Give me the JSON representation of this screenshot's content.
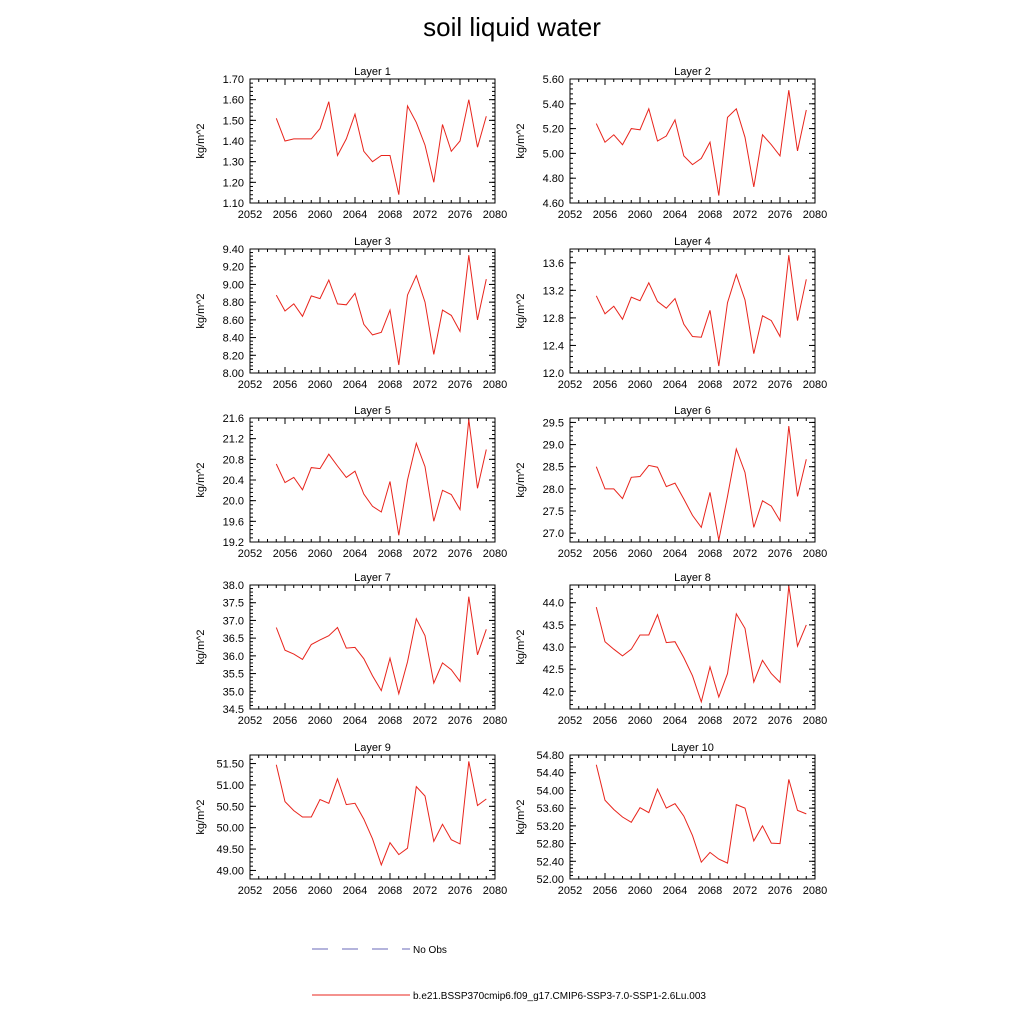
{
  "title": "soil liquid water",
  "colors": {
    "model_line": "#e8241c",
    "obs_line": "#6a6ab8",
    "axis": "#000000"
  },
  "legend": {
    "obs_label": "No Obs",
    "model_label": "b.e21.BSSP370cmip6.f09_g17.CMIP6-SSP3-7.0-SSP1-2.6Lu.003"
  },
  "chart_data": [
    {
      "type": "line",
      "title": "Layer 1",
      "ylabel": "kg/m^2",
      "xlim": [
        2052,
        2080
      ],
      "ylim": [
        1.1,
        1.7
      ],
      "xticks": [
        2052,
        2056,
        2060,
        2064,
        2068,
        2072,
        2076,
        2080
      ],
      "yticks": [
        1.1,
        1.2,
        1.3,
        1.4,
        1.5,
        1.6,
        1.7
      ],
      "ydecimals": 2,
      "x": [
        2055,
        2056,
        2057,
        2058,
        2059,
        2060,
        2061,
        2062,
        2063,
        2064,
        2065,
        2066,
        2067,
        2068,
        2069,
        2070,
        2071,
        2072,
        2073,
        2074,
        2075,
        2076,
        2077,
        2078,
        2079
      ],
      "values": [
        1.51,
        1.4,
        1.41,
        1.41,
        1.41,
        1.46,
        1.59,
        1.33,
        1.41,
        1.53,
        1.35,
        1.3,
        1.33,
        1.33,
        1.14,
        1.57,
        1.49,
        1.38,
        1.2,
        1.48,
        1.35,
        1.4,
        1.6,
        1.37,
        1.52
      ]
    },
    {
      "type": "line",
      "title": "Layer 2",
      "ylabel": "kg/m^2",
      "xlim": [
        2052,
        2080
      ],
      "ylim": [
        4.6,
        5.6
      ],
      "xticks": [
        2052,
        2056,
        2060,
        2064,
        2068,
        2072,
        2076,
        2080
      ],
      "yticks": [
        4.6,
        4.8,
        5.0,
        5.2,
        5.4,
        5.6
      ],
      "ydecimals": 2,
      "x": [
        2055,
        2056,
        2057,
        2058,
        2059,
        2060,
        2061,
        2062,
        2063,
        2064,
        2065,
        2066,
        2067,
        2068,
        2069,
        2070,
        2071,
        2072,
        2073,
        2074,
        2075,
        2076,
        2077,
        2078,
        2079
      ],
      "values": [
        5.24,
        5.09,
        5.15,
        5.07,
        5.2,
        5.19,
        5.36,
        5.1,
        5.14,
        5.27,
        4.98,
        4.91,
        4.96,
        5.09,
        4.66,
        5.29,
        5.36,
        5.13,
        4.73,
        5.15,
        5.07,
        4.98,
        5.51,
        5.02,
        5.35
      ]
    },
    {
      "type": "line",
      "title": "Layer 3",
      "ylabel": "kg/m^2",
      "xlim": [
        2052,
        2080
      ],
      "ylim": [
        8.0,
        9.4
      ],
      "xticks": [
        2052,
        2056,
        2060,
        2064,
        2068,
        2072,
        2076,
        2080
      ],
      "yticks": [
        8.0,
        8.2,
        8.4,
        8.6,
        8.8,
        9.0,
        9.2,
        9.4
      ],
      "ydecimals": 2,
      "x": [
        2055,
        2056,
        2057,
        2058,
        2059,
        2060,
        2061,
        2062,
        2063,
        2064,
        2065,
        2066,
        2067,
        2068,
        2069,
        2070,
        2071,
        2072,
        2073,
        2074,
        2075,
        2076,
        2077,
        2078,
        2079
      ],
      "values": [
        8.88,
        8.7,
        8.78,
        8.64,
        8.87,
        8.84,
        9.05,
        8.78,
        8.77,
        8.9,
        8.55,
        8.43,
        8.46,
        8.71,
        8.09,
        8.88,
        9.1,
        8.8,
        8.21,
        8.71,
        8.65,
        8.47,
        9.33,
        8.6,
        9.06
      ]
    },
    {
      "type": "line",
      "title": "Layer 4",
      "ylabel": "kg/m^2",
      "xlim": [
        2052,
        2080
      ],
      "ylim": [
        12.0,
        13.8
      ],
      "xticks": [
        2052,
        2056,
        2060,
        2064,
        2068,
        2072,
        2076,
        2080
      ],
      "yticks": [
        12.0,
        12.4,
        12.8,
        13.2,
        13.6
      ],
      "ydecimals": 1,
      "x": [
        2055,
        2056,
        2057,
        2058,
        2059,
        2060,
        2061,
        2062,
        2063,
        2064,
        2065,
        2066,
        2067,
        2068,
        2069,
        2070,
        2071,
        2072,
        2073,
        2074,
        2075,
        2076,
        2077,
        2078,
        2079
      ],
      "values": [
        13.12,
        12.86,
        12.97,
        12.78,
        13.1,
        13.05,
        13.31,
        13.04,
        12.94,
        13.08,
        12.71,
        12.53,
        12.52,
        12.91,
        12.1,
        13.02,
        13.43,
        13.06,
        12.28,
        12.83,
        12.76,
        12.53,
        13.71,
        12.76,
        13.36
      ]
    },
    {
      "type": "line",
      "title": "Layer 5",
      "ylabel": "kg/m^2",
      "xlim": [
        2052,
        2080
      ],
      "ylim": [
        19.2,
        21.6
      ],
      "xticks": [
        2052,
        2056,
        2060,
        2064,
        2068,
        2072,
        2076,
        2080
      ],
      "yticks": [
        19.2,
        19.6,
        20.0,
        20.4,
        20.8,
        21.2,
        21.6
      ],
      "ydecimals": 1,
      "x": [
        2055,
        2056,
        2057,
        2058,
        2059,
        2060,
        2061,
        2062,
        2063,
        2064,
        2065,
        2066,
        2067,
        2068,
        2069,
        2070,
        2071,
        2072,
        2073,
        2074,
        2075,
        2076,
        2077,
        2078,
        2079
      ],
      "values": [
        20.71,
        20.35,
        20.45,
        20.21,
        20.64,
        20.62,
        20.9,
        20.67,
        20.45,
        20.57,
        20.13,
        19.89,
        19.78,
        20.37,
        19.33,
        20.4,
        21.11,
        20.66,
        19.6,
        20.2,
        20.12,
        19.83,
        21.57,
        20.24,
        20.99
      ]
    },
    {
      "type": "line",
      "title": "Layer 6",
      "ylabel": "kg/m^2",
      "xlim": [
        2052,
        2080
      ],
      "ylim": [
        26.8,
        29.6
      ],
      "xticks": [
        2052,
        2056,
        2060,
        2064,
        2068,
        2072,
        2076,
        2080
      ],
      "yticks": [
        27.0,
        27.5,
        28.0,
        28.5,
        29.0,
        29.5
      ],
      "ydecimals": 1,
      "x": [
        2055,
        2056,
        2057,
        2058,
        2059,
        2060,
        2061,
        2062,
        2063,
        2064,
        2065,
        2066,
        2067,
        2068,
        2069,
        2070,
        2071,
        2072,
        2073,
        2074,
        2075,
        2076,
        2077,
        2078,
        2079
      ],
      "values": [
        28.5,
        28.0,
        28.0,
        27.78,
        28.26,
        28.28,
        28.53,
        28.49,
        28.05,
        28.13,
        27.77,
        27.4,
        27.13,
        27.92,
        26.84,
        27.83,
        28.9,
        28.37,
        27.13,
        27.73,
        27.61,
        27.28,
        29.42,
        27.83,
        28.67
      ]
    },
    {
      "type": "line",
      "title": "Layer 7",
      "ylabel": "kg/m^2",
      "xlim": [
        2052,
        2080
      ],
      "ylim": [
        34.5,
        38.0
      ],
      "xticks": [
        2052,
        2056,
        2060,
        2064,
        2068,
        2072,
        2076,
        2080
      ],
      "yticks": [
        34.5,
        35.0,
        35.5,
        36.0,
        36.5,
        37.0,
        37.5,
        38.0
      ],
      "ydecimals": 1,
      "x": [
        2055,
        2056,
        2057,
        2058,
        2059,
        2060,
        2061,
        2062,
        2063,
        2064,
        2065,
        2066,
        2067,
        2068,
        2069,
        2070,
        2071,
        2072,
        2073,
        2074,
        2075,
        2076,
        2077,
        2078,
        2079
      ],
      "values": [
        36.8,
        36.16,
        36.05,
        35.9,
        36.32,
        36.45,
        36.57,
        36.8,
        36.22,
        36.24,
        35.92,
        35.44,
        35.02,
        35.93,
        34.93,
        35.83,
        37.05,
        36.57,
        35.23,
        35.8,
        35.61,
        35.28,
        37.67,
        36.03,
        36.75
      ]
    },
    {
      "type": "line",
      "title": "Layer 8",
      "ylabel": "kg/m^2",
      "xlim": [
        2052,
        2080
      ],
      "ylim": [
        41.6,
        44.4
      ],
      "xticks": [
        2052,
        2056,
        2060,
        2064,
        2068,
        2072,
        2076,
        2080
      ],
      "yticks": [
        42.0,
        42.5,
        43.0,
        43.5,
        44.0
      ],
      "ydecimals": 1,
      "x": [
        2055,
        2056,
        2057,
        2058,
        2059,
        2060,
        2061,
        2062,
        2063,
        2064,
        2065,
        2066,
        2067,
        2068,
        2069,
        2070,
        2071,
        2072,
        2073,
        2074,
        2075,
        2076,
        2077,
        2078,
        2079
      ],
      "values": [
        43.9,
        43.12,
        42.95,
        42.8,
        42.95,
        43.27,
        43.27,
        43.73,
        43.1,
        43.12,
        42.76,
        42.35,
        41.76,
        42.55,
        41.87,
        42.4,
        43.75,
        43.42,
        42.21,
        42.7,
        42.4,
        42.2,
        44.38,
        43.02,
        43.5
      ]
    },
    {
      "type": "line",
      "title": "Layer 9",
      "ylabel": "kg/m^2",
      "xlim": [
        2052,
        2080
      ],
      "ylim": [
        48.8,
        51.7
      ],
      "xticks": [
        2052,
        2056,
        2060,
        2064,
        2068,
        2072,
        2076,
        2080
      ],
      "yticks": [
        49.0,
        49.5,
        50.0,
        50.5,
        51.0,
        51.5
      ],
      "ydecimals": 2,
      "x": [
        2055,
        2056,
        2057,
        2058,
        2059,
        2060,
        2061,
        2062,
        2063,
        2064,
        2065,
        2066,
        2067,
        2068,
        2069,
        2070,
        2071,
        2072,
        2073,
        2074,
        2075,
        2076,
        2077,
        2078,
        2079
      ],
      "values": [
        51.47,
        50.61,
        50.4,
        50.25,
        50.25,
        50.66,
        50.57,
        51.14,
        50.54,
        50.57,
        50.2,
        49.74,
        49.13,
        49.65,
        49.37,
        49.52,
        50.96,
        50.74,
        49.68,
        50.08,
        49.72,
        49.62,
        51.55,
        50.52,
        50.67
      ]
    },
    {
      "type": "line",
      "title": "Layer 10",
      "ylabel": "kg/m^2",
      "xlim": [
        2052,
        2080
      ],
      "ylim": [
        52.0,
        54.8
      ],
      "xticks": [
        2052,
        2056,
        2060,
        2064,
        2068,
        2072,
        2076,
        2080
      ],
      "yticks": [
        52.0,
        52.4,
        52.8,
        53.2,
        53.6,
        54.0,
        54.4,
        54.8
      ],
      "ydecimals": 2,
      "x": [
        2055,
        2056,
        2057,
        2058,
        2059,
        2060,
        2061,
        2062,
        2063,
        2064,
        2065,
        2066,
        2067,
        2068,
        2069,
        2070,
        2071,
        2072,
        2073,
        2074,
        2075,
        2076,
        2077,
        2078,
        2079
      ],
      "values": [
        54.58,
        53.78,
        53.57,
        53.4,
        53.28,
        53.61,
        53.5,
        54.03,
        53.6,
        53.7,
        53.42,
        52.98,
        52.38,
        52.6,
        52.45,
        52.36,
        53.68,
        53.6,
        52.86,
        53.2,
        52.81,
        52.8,
        54.25,
        53.55,
        53.47
      ]
    }
  ]
}
